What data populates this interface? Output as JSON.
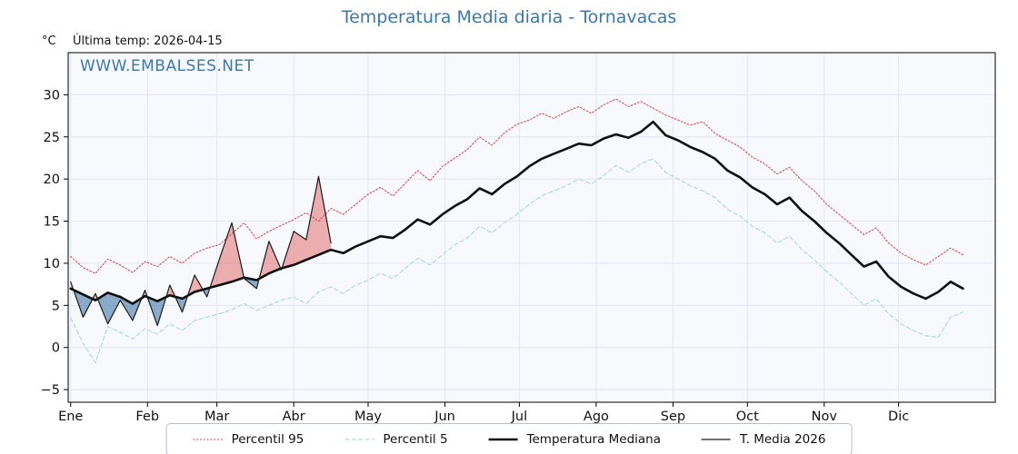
{
  "chart_data": {
    "type": "line",
    "title": "Temperatura Media diaria - Tornavacas",
    "last_temp_note": "Última temp: 2026-04-15",
    "ylabel": "°C",
    "watermark": "WWW.EMBALSES.NET",
    "grid": true,
    "legend_position": "bottom",
    "xlim": [
      0,
      374
    ],
    "ylim": [
      -6.5,
      35
    ],
    "yticks": [
      -5,
      0,
      5,
      10,
      15,
      20,
      25,
      30
    ],
    "x_months": {
      "labels": [
        "Ene",
        "Feb",
        "Mar",
        "Abr",
        "May",
        "Jun",
        "Jul",
        "Ago",
        "Sep",
        "Oct",
        "Nov",
        "Dic"
      ],
      "start_days": [
        1,
        32,
        60,
        91,
        121,
        152,
        182,
        213,
        244,
        274,
        305,
        335
      ]
    },
    "days": [
      1,
      6,
      11,
      16,
      21,
      26,
      31,
      36,
      41,
      46,
      51,
      56,
      61,
      66,
      71,
      76,
      81,
      86,
      91,
      96,
      101,
      106,
      111,
      116,
      121,
      126,
      131,
      136,
      141,
      146,
      151,
      156,
      161,
      166,
      171,
      176,
      181,
      186,
      191,
      196,
      201,
      206,
      211,
      216,
      221,
      226,
      231,
      236,
      241,
      246,
      251,
      256,
      261,
      266,
      271,
      276,
      281,
      286,
      291,
      296,
      301,
      306,
      311,
      316,
      321,
      326,
      331,
      336,
      341,
      346,
      351,
      356,
      361
    ],
    "series": [
      {
        "name": "Percentil 95",
        "color": "#dc4a4a",
        "style": "dotted",
        "width": 1.1,
        "values": [
          10.8,
          9.5,
          8.8,
          10.5,
          9.8,
          8.9,
          10.2,
          9.6,
          10.8,
          10.0,
          11.2,
          11.8,
          12.2,
          13.5,
          14.8,
          12.9,
          13.8,
          14.5,
          15.2,
          16.0,
          15.0,
          16.5,
          15.8,
          17.0,
          18.2,
          19.0,
          18.0,
          19.5,
          21.0,
          19.8,
          21.5,
          22.5,
          23.5,
          25.0,
          24.0,
          25.5,
          26.5,
          27.0,
          27.8,
          27.2,
          28.0,
          28.6,
          27.8,
          28.8,
          29.5,
          28.6,
          29.2,
          28.4,
          27.6,
          27.0,
          26.4,
          26.8,
          25.4,
          24.6,
          23.8,
          22.6,
          21.8,
          20.6,
          21.4,
          19.8,
          18.6,
          17.0,
          15.8,
          14.6,
          13.4,
          14.2,
          12.4,
          11.2,
          10.4,
          9.8,
          10.8,
          11.8,
          11.0
        ]
      },
      {
        "name": "Percentil 5",
        "color": "#a8d8e6",
        "style": "dashed",
        "width": 1.1,
        "values": [
          3.5,
          0.5,
          -1.8,
          2.5,
          1.8,
          1.0,
          2.2,
          1.6,
          2.8,
          2.0,
          3.2,
          3.6,
          4.0,
          4.5,
          5.2,
          4.4,
          5.0,
          5.6,
          6.0,
          5.2,
          6.6,
          7.2,
          6.4,
          7.4,
          8.0,
          8.8,
          8.2,
          9.4,
          10.6,
          9.8,
          11.0,
          12.2,
          13.0,
          14.4,
          13.6,
          14.8,
          15.8,
          17.0,
          18.0,
          18.6,
          19.2,
          20.0,
          19.4,
          20.4,
          21.6,
          20.8,
          21.8,
          22.4,
          20.8,
          20.0,
          19.2,
          18.6,
          17.8,
          16.4,
          15.6,
          14.4,
          13.6,
          12.4,
          13.2,
          11.6,
          10.4,
          9.0,
          7.8,
          6.4,
          5.0,
          5.8,
          4.0,
          2.8,
          2.0,
          1.4,
          1.2,
          3.6,
          4.2
        ]
      },
      {
        "name": "Temperatura Mediana",
        "color": "#0f0f0f",
        "style": "solid",
        "width": 2.6,
        "values": [
          7.0,
          6.3,
          5.6,
          6.5,
          6.0,
          5.2,
          6.1,
          5.5,
          6.2,
          5.8,
          6.6,
          7.0,
          7.4,
          7.8,
          8.3,
          8.0,
          8.8,
          9.4,
          9.8,
          10.4,
          11.0,
          11.6,
          11.2,
          12.0,
          12.6,
          13.2,
          13.0,
          14.0,
          15.2,
          14.6,
          15.8,
          16.8,
          17.6,
          18.9,
          18.2,
          19.4,
          20.3,
          21.5,
          22.4,
          23.0,
          23.6,
          24.2,
          24.0,
          24.8,
          25.3,
          24.9,
          25.6,
          26.8,
          25.2,
          24.6,
          23.8,
          23.2,
          22.4,
          21.0,
          20.2,
          19.0,
          18.2,
          17.0,
          17.8,
          16.2,
          15.0,
          13.6,
          12.4,
          11.0,
          9.6,
          10.2,
          8.4,
          7.2,
          6.4,
          5.8,
          6.6,
          7.8,
          7.0
        ]
      },
      {
        "name": "T. Media 2026",
        "color": "#1a1a1a",
        "style": "solid",
        "width": 1.2,
        "values": [
          7.8,
          3.6,
          6.4,
          2.8,
          5.6,
          3.2,
          6.8,
          2.6,
          7.4,
          4.2,
          8.6,
          6.0,
          10.5,
          14.8,
          8.2,
          7.0,
          12.6,
          9.2,
          13.8,
          12.8,
          20.3,
          12.4
        ]
      }
    ],
    "fills": {
      "between": [
        "T. Media 2026",
        "Temperatura Mediana"
      ],
      "above_color": "rgba(221,80,80,0.45)",
      "below_color": "rgba(79,127,174,0.65)"
    },
    "colors": {
      "title_blue": "#3878b4",
      "plot_background": "#f7f9fc",
      "gridline": "#e2e8f0"
    }
  }
}
